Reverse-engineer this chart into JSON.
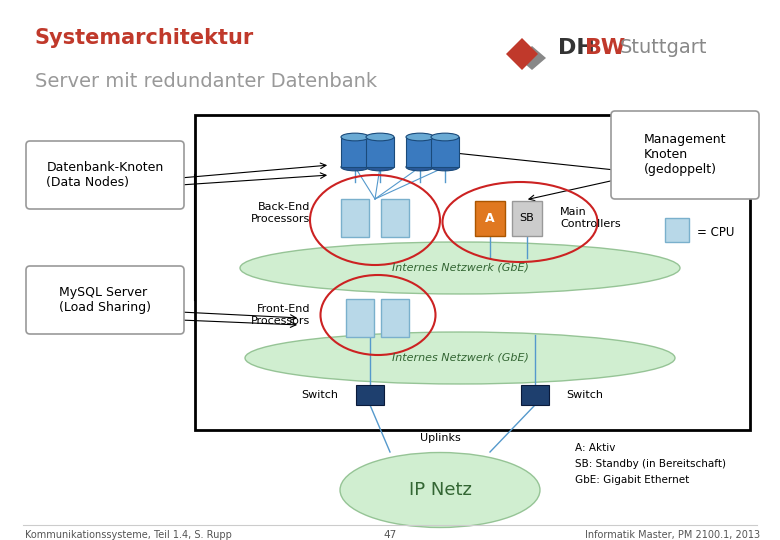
{
  "title": "Systemarchitektur",
  "subtitle": "Server mit redundanter Datenbank",
  "bg_color": "#ffffff",
  "title_color": "#c0392b",
  "subtitle_color": "#999999",
  "label_datenbank": "Datenbank-Knoten\n(Data Nodes)",
  "label_mysql": "MySQL Server\n(Load Sharing)",
  "label_management": "Management\nKnoten\n(gedoppelt)",
  "label_backend": "Back-End\nProcessors",
  "label_frontend": "Front-End\nProcessors",
  "label_switch1": "Switch",
  "label_switch2": "Switch",
  "label_uplinks": "Uplinks",
  "label_ipnetz": "IP Netz",
  "label_network1": "Internes Netzwerk (GbE)",
  "label_network2": "Internes Netzwerk (GbE)",
  "label_main_ctrl": "Main\nControllers",
  "label_cpu": "= CPU",
  "label_a": "A",
  "label_sb": "SB",
  "legend_a": "A: Aktiv",
  "legend_sb": "SB: Standby (in Bereitschaft)",
  "legend_gbe": "GbE: Gigabit Ethernet",
  "footer_left": "Kommunikationssysteme, Teil 1.4, S. Rupp",
  "footer_center": "47",
  "footer_right": "Informatik Master, PM 2100.1, 2013",
  "cpu_color": "#b8d8e8",
  "db_color": "#3a7abf",
  "switch_color": "#1e3f6e",
  "a_color": "#e07820",
  "sb_color": "#cccccc",
  "network_color": "#c8ecc8",
  "ipnetz_color": "#c8ecc8",
  "ellipse_border": "#cc2222",
  "line_color": "#5599cc"
}
